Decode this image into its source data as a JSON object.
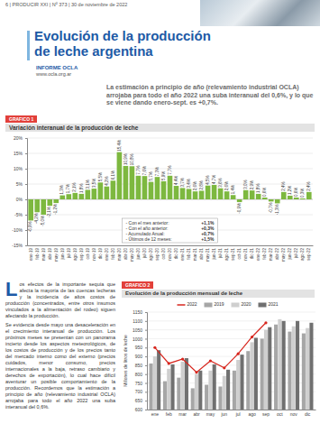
{
  "page": {
    "header": "6 | PRODUCIR XXI | Nº 373 | 30 de noviembre de 2022",
    "title": [
      "Evolución de la producción",
      "de leche argentina"
    ],
    "source": {
      "name": "INFORME OCLA",
      "url": "www.ocla.org.ar"
    },
    "lead": "La estimación a principio de año (relevamiento industrial OCLA) arrojaba para todo el año 2022 una suba interanual del 0,6%, y lo que se viene dando enero-sept. es +0,7%.",
    "body": [
      "Los efectos de la importante sequía que afecta la mayoría de las cuencas lecheras y la incidencia de altos costos de producción (concentrados, entre otros insumos vinculados a la alimentación del rodeo) siguen afectando la producción.",
      "Se evidencia desde mayo una desaceleración en el crecimiento interanual de producción. Los próximos meses se presentan con un panorama incierto desde los aspectos meteorológicos, de los costos de producción y de los precios tanto del mercado interno como del externo (precios cuidados, menor consumo, precios internacionales a la baja, retraso cambiario y derechos de exportación), lo cual hace difícil aventurar un posible comportamiento de la producción. Recordemos que la estimación a principio de año (relevamiento industrial OCLA) arrojaba para todo el año 2022 una suba interanual del 0,6%."
    ]
  },
  "chart_data": [
    {
      "type": "bar",
      "label": "GRAFICO 1",
      "title": "Variación interanual de la producción de leche",
      "categories": [
        "ene-19",
        "feb-19",
        "mar-19",
        "abr-19",
        "may-19",
        "jun-19",
        "jul-19",
        "ago-19",
        "sep-19",
        "oct-19",
        "nov-19",
        "dic-19",
        "ene-20",
        "feb-20",
        "mar-20",
        "abr-20",
        "may-20",
        "jun-20",
        "jul-20",
        "ago-20",
        "sep-20",
        "oct-20",
        "nov-20",
        "dic-20",
        "ene-21",
        "feb-21",
        "mar-21",
        "abr-21",
        "may-21",
        "jun-21",
        "jul-21",
        "ago-21",
        "sep-21",
        "oct-21",
        "nov-21",
        "dic-21",
        "ene-22",
        "feb-22",
        "mar-22",
        "abr-22",
        "may-22",
        "jun-22",
        "jul-22",
        "ago-22",
        "sep-22"
      ],
      "values": [
        -6.9,
        -4.2,
        -5.0,
        -2.1,
        -1.2,
        1.3,
        1.7,
        2.1,
        1.8,
        3.1,
        3.5,
        5.5,
        4.2,
        6.1,
        15.4,
        10.9,
        10.8,
        7.7,
        7.6,
        5.7,
        7.3,
        5.9,
        7.7,
        4.4,
        3.7,
        3.4,
        2.6,
        2.8,
        4.5,
        4.7,
        3.6,
        2.6,
        1.4,
        -0.9,
        3.0,
        2.9,
        1.8,
        0.6,
        -0.7,
        -1.3,
        2.4,
        1.2,
        0.6,
        0.3,
        2.4
      ],
      "value_labels": [
        "-6,9%",
        "-4,2%",
        "-5,0%",
        "-2,1%",
        "-1,2%",
        "1,3%",
        "1,7%",
        "2,1%",
        "1,8%",
        "3,1%",
        "3,5%",
        "5,5%",
        "4,2%",
        "6,1%",
        "15,4%",
        "10,9%",
        "10,8%",
        "7,7%",
        "7,6%",
        "5,7%",
        "7,3%",
        "5,9%",
        "7,7%",
        "4,4%",
        "3,7%",
        "3,4%",
        "2,6%",
        "2,8%",
        "4,5%",
        "4,7%",
        "3,6%",
        "2,6%",
        "1,4%",
        "-0,9%",
        "3,0%",
        "2,9%",
        "1,8%",
        "0,6%",
        "-0,7%",
        "-1,3%",
        "2,4%",
        "1,2%",
        "0,6%",
        "0,3%",
        "2,4%"
      ],
      "color": "#7db83f",
      "ylim": [
        -15,
        20
      ],
      "yticks": [
        {
          "value": 20,
          "label": "20%"
        },
        {
          "value": 15,
          "label": "15%"
        },
        {
          "value": 10,
          "label": "10%"
        },
        {
          "value": 5,
          "label": "5%"
        },
        {
          "value": 0,
          "label": "0%"
        },
        {
          "value": -5,
          "label": "-5%"
        },
        {
          "value": -10,
          "label": "-10%"
        },
        {
          "value": -15,
          "label": "-15%"
        }
      ],
      "grid": true,
      "data_labels": true,
      "annotations": [
        {
          "text": "- Con el mes anterior:",
          "value": "+1,1%"
        },
        {
          "text": "- Con el año anterior:",
          "value": "+0,3%"
        },
        {
          "text": "- Acumulado Anual:",
          "value": "+0,7%"
        },
        {
          "text": "- Últimos de 12 meses:",
          "value": "+1,5%"
        }
      ]
    },
    {
      "type": "bar",
      "label": "GRAFICO 2",
      "title": "Evolución de la producción mensual de leche",
      "y_label": "Millones de litros de leche",
      "categories": [
        "ene",
        "feb",
        "mar",
        "abr",
        "may",
        "jun",
        "jul",
        "ago",
        "sep",
        "oct",
        "nov",
        "dic"
      ],
      "series": [
        {
          "name": "2022",
          "color": "#d7261e",
          "type": "line",
          "marker": "circle",
          "values": [
            950,
            860,
            885,
            810,
            875,
            835,
            915,
            1010,
            1090,
            null,
            null,
            null
          ]
        },
        {
          "name": "2019",
          "color": "#a6a6a6",
          "type": "bar",
          "values": [
            860,
            760,
            780,
            720,
            740,
            730,
            820,
            930,
            1000,
            1080,
            1040,
            1030
          ]
        },
        {
          "name": "2020",
          "color": "#cfcfcf",
          "type": "bar",
          "values": [
            900,
            830,
            870,
            800,
            820,
            790,
            880,
            980,
            1050,
            1110,
            1070,
            1060
          ]
        },
        {
          "name": "2021",
          "color": "#707070",
          "type": "bar",
          "values": [
            935,
            855,
            890,
            820,
            855,
            825,
            910,
            1005,
            1065,
            1100,
            1100,
            1090
          ]
        }
      ],
      "ylim": [
        600,
        1150
      ],
      "yticks": [
        600,
        650,
        700,
        750,
        800,
        850,
        900,
        950,
        1000,
        1050,
        1100,
        1150
      ],
      "grid": true,
      "legend": "top"
    }
  ]
}
